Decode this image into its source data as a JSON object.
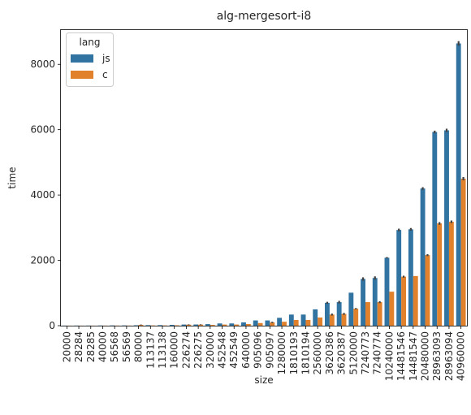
{
  "chart_data": {
    "type": "bar",
    "title": "alg-mergesort-i8",
    "xlabel": "size",
    "ylabel": "time",
    "ylim": [
      0,
      9050
    ],
    "yticks": [
      0,
      2000,
      4000,
      6000,
      8000
    ],
    "grid": false,
    "legend": {
      "title": "lang",
      "placement": "top-left"
    },
    "categories": [
      "20000",
      "28284",
      "28285",
      "40000",
      "56568",
      "56569",
      "80000",
      "113137",
      "113138",
      "160000",
      "226274",
      "226275",
      "320000",
      "452548",
      "452549",
      "640000",
      "905096",
      "905097",
      "1280000",
      "1810193",
      "1810194",
      "2560000",
      "3620386",
      "3620387",
      "5120000",
      "7240773",
      "7240774",
      "10240000",
      "14481546",
      "14481547",
      "20480000",
      "28963093",
      "28963094",
      "40960000"
    ],
    "series": [
      {
        "name": "js",
        "color": "#3274a1",
        "values": [
          3,
          4,
          4,
          6,
          8,
          8,
          12,
          17,
          17,
          25,
          35,
          36,
          48,
          68,
          68,
          100,
          160,
          160,
          240,
          340,
          340,
          500,
          700,
          720,
          1010,
          1430,
          1460,
          2080,
          2930,
          2950,
          4200,
          5930,
          5980,
          8640
        ],
        "error": [
          0,
          0,
          0,
          0,
          0,
          0,
          0,
          0,
          0,
          0,
          0,
          0,
          0,
          0,
          0,
          0,
          0,
          0,
          0,
          0,
          0,
          0,
          30,
          40,
          0,
          50,
          50,
          20,
          40,
          40,
          40,
          40,
          50,
          70
        ]
      },
      {
        "name": "c",
        "color": "#e1812c",
        "values": [
          2,
          2,
          2,
          3,
          4,
          4,
          25,
          8,
          8,
          12,
          30,
          32,
          24,
          34,
          35,
          50,
          80,
          100,
          120,
          175,
          175,
          250,
          340,
          360,
          520,
          720,
          720,
          1040,
          1500,
          1520,
          2160,
          3130,
          3180,
          4500
        ],
        "error": [
          0,
          0,
          0,
          0,
          0,
          0,
          10,
          0,
          0,
          0,
          10,
          10,
          0,
          0,
          0,
          0,
          0,
          20,
          0,
          0,
          0,
          0,
          30,
          30,
          20,
          0,
          30,
          0,
          30,
          0,
          30,
          40,
          40,
          50
        ]
      }
    ]
  }
}
